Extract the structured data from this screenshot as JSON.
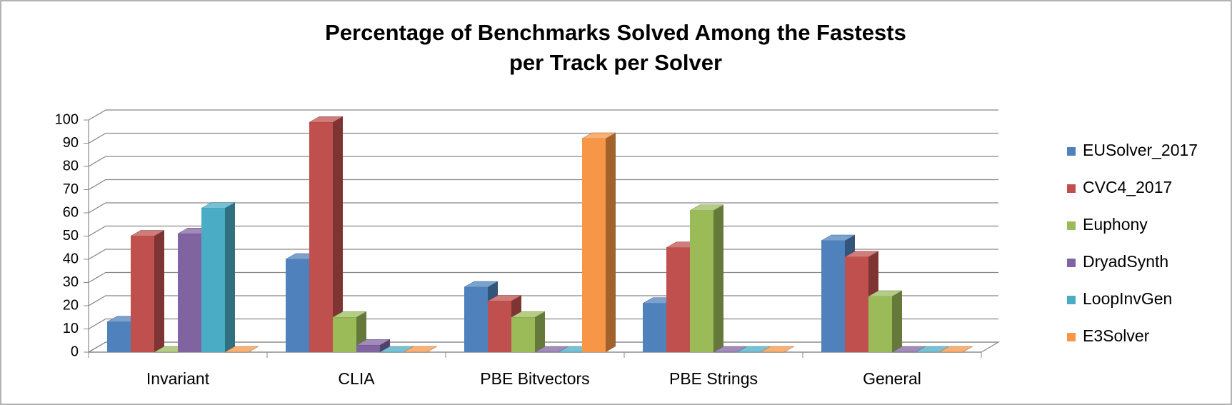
{
  "chart_data": {
    "type": "bar3d",
    "title": [
      "Percentage of Benchmarks Solved Among the Fastests",
      "per Track per Solver"
    ],
    "categories": [
      "Invariant",
      "CLIA",
      "PBE Bitvectors",
      "PBE Strings",
      "General"
    ],
    "series": [
      {
        "name": "EUSolver_2017",
        "color": "#4f81bd",
        "values": [
          13,
          40,
          28,
          21,
          48
        ]
      },
      {
        "name": "CVC4_2017",
        "color": "#c0504d",
        "values": [
          50,
          99,
          22,
          45,
          41
        ]
      },
      {
        "name": "Euphony",
        "color": "#9bbb59",
        "values": [
          0,
          15,
          15,
          61,
          24
        ]
      },
      {
        "name": "DryadSynth",
        "color": "#8064a2",
        "values": [
          51,
          3,
          0,
          0,
          0
        ]
      },
      {
        "name": "LoopInvGen",
        "color": "#4bacc6",
        "values": [
          62,
          0,
          0,
          0,
          0
        ]
      },
      {
        "name": "E3Solver",
        "color": "#f79646",
        "values": [
          0,
          0,
          92,
          0,
          0
        ]
      }
    ],
    "ylim": [
      0,
      100
    ],
    "yticks": [
      0,
      10,
      20,
      30,
      40,
      50,
      60,
      70,
      80,
      90,
      100
    ],
    "grid": true,
    "legend": "right"
  }
}
